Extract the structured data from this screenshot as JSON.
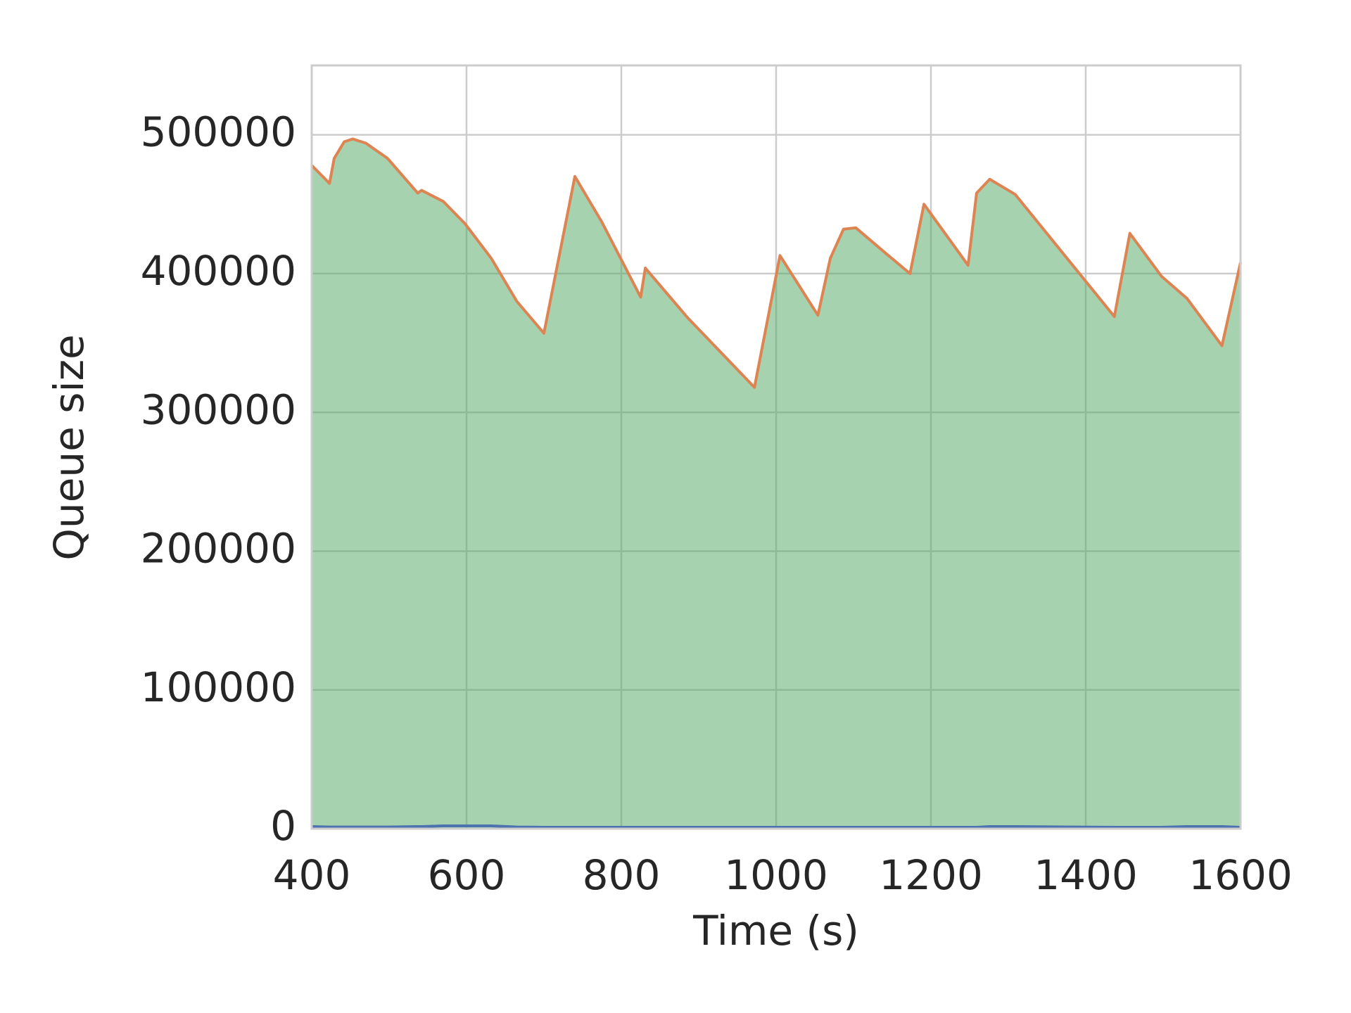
{
  "chart_data": {
    "type": "area",
    "x_label": "Time (s)",
    "y_label": "Queue size",
    "x": [
      400,
      423,
      429,
      442,
      453,
      470,
      498,
      537,
      542,
      570,
      598,
      632,
      665,
      700,
      740,
      775,
      825,
      831,
      886,
      972,
      1005,
      1054,
      1070,
      1087,
      1103,
      1143,
      1173,
      1191,
      1248,
      1259,
      1276,
      1309,
      1437,
      1457,
      1498,
      1531,
      1576,
      1600
    ],
    "series": [
      {
        "color": "#4c72b0",
        "values": [
          1500,
          1200,
          1200,
          1200,
          1200,
          1200,
          1200,
          1500,
          1500,
          2000,
          2000,
          2000,
          1200,
          1000,
          1000,
          1000,
          1000,
          1000,
          1000,
          1000,
          1000,
          1000,
          1000,
          1000,
          1000,
          1000,
          1000,
          1000,
          1000,
          1000,
          1500,
          1500,
          1000,
          1000,
          1000,
          1500,
          1500,
          1000
        ]
      },
      {
        "color": "#dd8452",
        "fill": "#55a868",
        "values": [
          478000,
          465000,
          483000,
          495000,
          497000,
          494000,
          483000,
          458000,
          460000,
          452000,
          436000,
          411000,
          380000,
          357000,
          470000,
          437000,
          383000,
          404000,
          368000,
          318000,
          413000,
          370000,
          411000,
          432000,
          433000,
          414000,
          400000,
          450000,
          406000,
          458000,
          468000,
          457000,
          369000,
          429000,
          398000,
          382000,
          348000,
          408000
        ]
      }
    ],
    "xlim": [
      400,
      1600
    ],
    "xticks": [
      400,
      600,
      800,
      1000,
      1200,
      1400,
      1600
    ],
    "ylim": [
      0,
      550000
    ],
    "yticks": [
      0,
      100000,
      200000,
      300000,
      400000,
      500000
    ],
    "grid": true
  }
}
